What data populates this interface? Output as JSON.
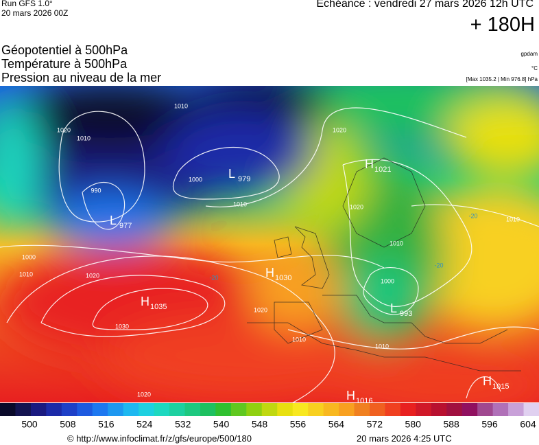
{
  "header": {
    "run": "Run GFS 1.0°",
    "run_date": "20 mars 2026 00Z",
    "forecast_time": "Echéance : vendredi 27 mars 2026 12h UTC",
    "lead": "+ 180H"
  },
  "titles": [
    "Géopotentiel à 500hPa",
    "Température à 500hPa",
    "Pression au niveau de la mer"
  ],
  "units": {
    "geopotential": "gpdam",
    "temperature": "°C",
    "pressure_range": "[Max 1035.2 | Min 976.8] hPa"
  },
  "pressure_centers": [
    {
      "letter": "H",
      "value": 1030
    },
    {
      "letter": "H",
      "value": 1035
    },
    {
      "letter": "L",
      "value": 977
    },
    {
      "letter": "L",
      "value": 979
    },
    {
      "letter": "L",
      "value": 993
    },
    {
      "letter": "H",
      "value": 1021
    },
    {
      "letter": "H",
      "value": 1015
    },
    {
      "letter": "H",
      "value": 1016
    }
  ],
  "isobar_labels": [
    1020,
    1010,
    990,
    1000,
    1010,
    1020,
    1030,
    1020,
    1020,
    1010,
    1010,
    1020,
    1010,
    1010,
    1010,
    1000,
    1010,
    1020,
    1000
  ],
  "temperature_labels": [
    -20,
    -20,
    -20
  ],
  "colorbar": {
    "colors": [
      "#0a0a2a",
      "#141450",
      "#1a1a80",
      "#1c2aa8",
      "#1e40c8",
      "#1e5ae0",
      "#1e78f0",
      "#1e98f0",
      "#1eb8f0",
      "#1ed0e0",
      "#1ed8c0",
      "#1ed0a0",
      "#1ec880",
      "#1ec060",
      "#30c030",
      "#60c820",
      "#90d010",
      "#c0d810",
      "#e8e010",
      "#f8e820",
      "#f8d020",
      "#f8b820",
      "#f8a020",
      "#f08020",
      "#f06020",
      "#f04020",
      "#e82020",
      "#d01828",
      "#b81030",
      "#a01040",
      "#901060",
      "#a04890",
      "#b070b8",
      "#c8a0d8",
      "#e0d0f0"
    ],
    "ticks": [
      500,
      508,
      516,
      524,
      532,
      540,
      548,
      556,
      564,
      572,
      580,
      588,
      596,
      604
    ]
  },
  "footer": {
    "source": "© http://www.infoclimat.fr/z/gfs/europe/500/180",
    "generated": "20 mars 2026  4:25 UTC"
  }
}
